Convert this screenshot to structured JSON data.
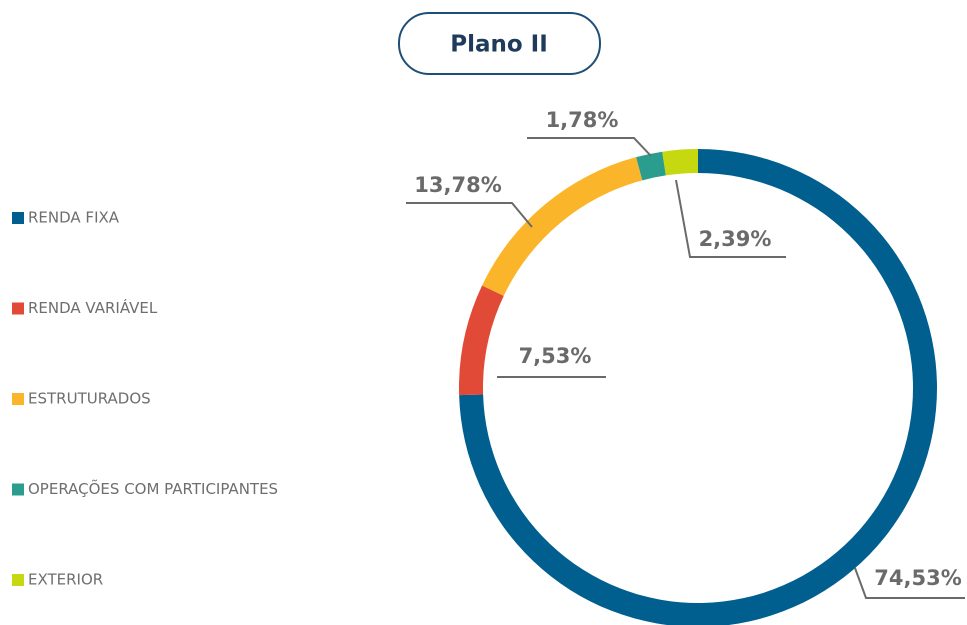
{
  "chart_data": {
    "type": "donut",
    "title": "Plano II",
    "categories": [
      "RENDA FIXA",
      "RENDA VARIÁVEL",
      "ESTRUTURADOS",
      "OPERAÇÕES COM PARTICIPANTES",
      "EXTERIOR"
    ],
    "values": [
      74.53,
      7.53,
      13.78,
      1.78,
      2.39
    ],
    "value_labels": [
      "74,53%",
      "7,53%",
      "13,78%",
      "1,78%",
      "2,39%"
    ],
    "colors": [
      "#005f8f",
      "#e04a36",
      "#fbb52a",
      "#2a9d8f",
      "#c6d80f"
    ],
    "legend": "left"
  }
}
